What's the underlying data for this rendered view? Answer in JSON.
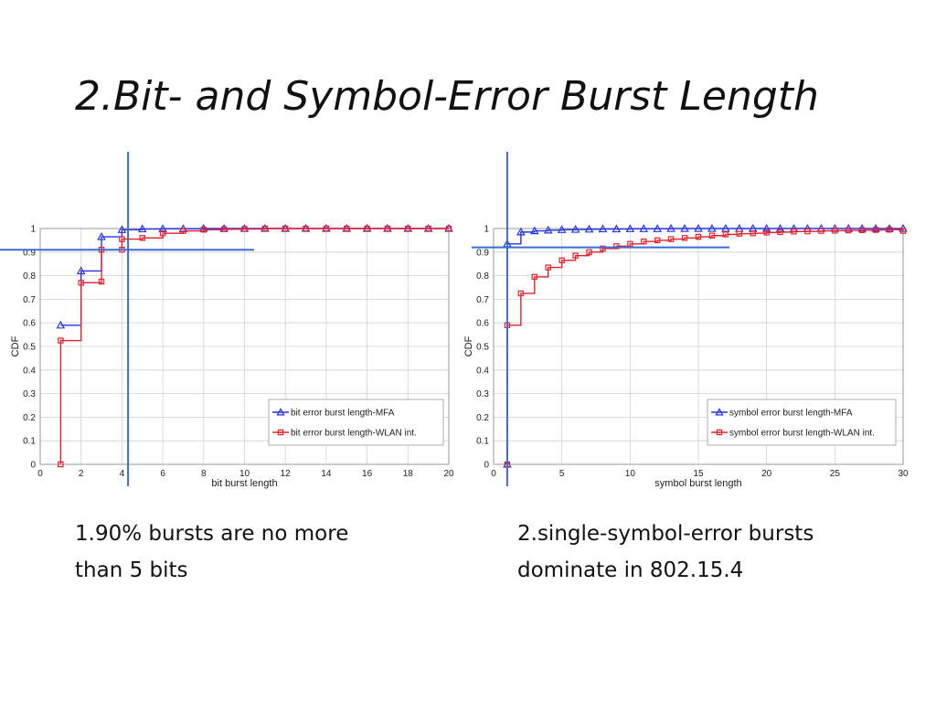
{
  "slide": {
    "title": "2.Bit- and Symbol-Error Burst Length",
    "caption_left": [
      "1.90% bursts are no more",
      "than 5 bits"
    ],
    "caption_right": [
      "2.single-symbol-error bursts",
      "dominate in 802.15.4"
    ]
  },
  "colors": {
    "mfa": "#2433e8",
    "wlan": "#e8202a",
    "guide": "#3a6fd0",
    "grid": "#d0d0d0",
    "axis": "#222222"
  },
  "chart_data": [
    {
      "type": "line",
      "step": true,
      "xlabel": "bit burst length",
      "ylabel": "CDF",
      "xlim": [
        0,
        20
      ],
      "ylim": [
        0,
        1
      ],
      "xticks": [
        0,
        2,
        4,
        6,
        8,
        10,
        12,
        14,
        16,
        18,
        20
      ],
      "yticks": [
        0,
        0.1,
        0.2,
        0.3,
        0.4,
        0.5,
        0.6,
        0.7,
        0.8,
        0.9,
        1
      ],
      "ytick_labels": [
        "0",
        "0.1",
        "0.2",
        "0.3",
        "0.4",
        "0.5",
        "0.6",
        "0.7",
        "0.8",
        "0.9",
        "1"
      ],
      "grid": true,
      "legend_position": "lower-right",
      "guide_lines": {
        "vertical_x": 4.3,
        "horizontal_y": 0.91
      },
      "series": [
        {
          "name": "bit error burst length-MFA",
          "color": "#2433e8",
          "marker": "triangle",
          "x": [
            1,
            2,
            3,
            4,
            5,
            6,
            7,
            8,
            9,
            10,
            11,
            12,
            13,
            14,
            15,
            16,
            17,
            18,
            19,
            20
          ],
          "values": [
            0.59,
            0.82,
            0.965,
            0.995,
            0.998,
            0.999,
            0.999,
            1,
            1,
            1,
            1,
            1,
            1,
            1,
            1,
            1,
            1,
            1,
            1,
            1
          ]
        },
        {
          "name": "bit error burst length-WLAN int.",
          "color": "#e8202a",
          "marker": "square",
          "x": [
            1,
            1,
            2,
            3,
            3,
            4,
            4,
            5,
            6,
            7,
            8,
            9,
            10,
            11,
            12,
            13,
            14,
            15,
            16,
            17,
            18,
            19,
            20
          ],
          "values": [
            0,
            0.525,
            0.77,
            0.775,
            0.91,
            0.91,
            0.955,
            0.96,
            0.98,
            0.99,
            0.995,
            0.997,
            0.998,
            1,
            1,
            1,
            1,
            1,
            1,
            1,
            1,
            1,
            1
          ]
        }
      ]
    },
    {
      "type": "line",
      "step": true,
      "xlabel": "symbol burst length",
      "ylabel": "CDF",
      "xlim": [
        0,
        30
      ],
      "ylim": [
        0,
        1
      ],
      "xticks": [
        0,
        5,
        10,
        15,
        20,
        25,
        30
      ],
      "yticks": [
        0,
        0.1,
        0.2,
        0.3,
        0.4,
        0.5,
        0.6,
        0.7,
        0.8,
        0.9,
        1
      ],
      "ytick_labels": [
        "0",
        "0.1",
        "0.2",
        "0.3",
        "0.4",
        "0.5",
        "0.6",
        "0.7",
        "0.8",
        "0.9",
        "1"
      ],
      "grid": true,
      "legend_position": "lower-right",
      "guide_lines": {
        "vertical_x": 1.0,
        "horizontal_y": 0.92
      },
      "series": [
        {
          "name": "symbol error burst length-MFA",
          "color": "#2433e8",
          "marker": "triangle",
          "x": [
            1,
            1,
            2,
            3,
            4,
            5,
            6,
            7,
            8,
            9,
            10,
            11,
            12,
            13,
            14,
            15,
            16,
            17,
            18,
            19,
            20,
            21,
            22,
            23,
            24,
            25,
            26,
            27,
            28,
            29,
            30
          ],
          "values": [
            0,
            0.935,
            0.985,
            0.99,
            0.993,
            0.995,
            0.996,
            0.997,
            0.998,
            0.998,
            0.999,
            0.999,
            0.999,
            1,
            1,
            1,
            1,
            1,
            1,
            1,
            1,
            1,
            1,
            1,
            1,
            1,
            1,
            1,
            1,
            1,
            1
          ]
        },
        {
          "name": "symbol error burst length-WLAN int.",
          "color": "#e8202a",
          "marker": "square",
          "x": [
            1,
            1,
            2,
            3,
            4,
            5,
            6,
            7,
            8,
            9,
            10,
            11,
            12,
            13,
            14,
            15,
            16,
            17,
            18,
            19,
            20,
            21,
            22,
            23,
            24,
            25,
            26,
            27,
            28,
            29,
            30
          ],
          "values": [
            0,
            0.59,
            0.725,
            0.795,
            0.835,
            0.865,
            0.885,
            0.9,
            0.915,
            0.925,
            0.935,
            0.945,
            0.95,
            0.955,
            0.96,
            0.965,
            0.97,
            0.975,
            0.978,
            0.98,
            0.983,
            0.985,
            0.987,
            0.988,
            0.99,
            0.991,
            0.992,
            0.993,
            0.994,
            0.995,
            0.99
          ]
        }
      ]
    }
  ]
}
